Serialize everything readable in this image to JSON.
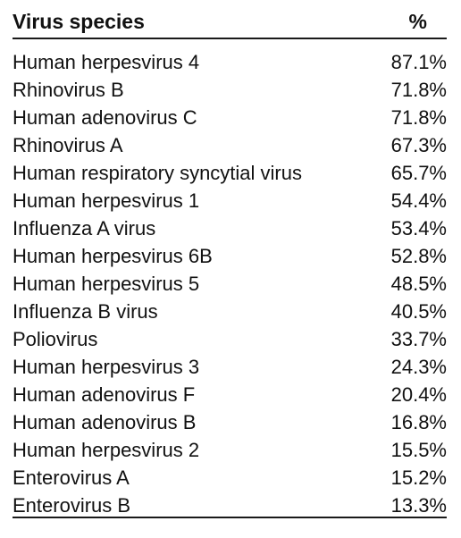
{
  "table": {
    "headers": {
      "name": "Virus species",
      "pct": "%"
    },
    "rows": [
      {
        "name": "Human herpesvirus 4",
        "pct": "87.1%"
      },
      {
        "name": "Rhinovirus B",
        "pct": "71.8%"
      },
      {
        "name": "Human adenovirus C",
        "pct": "71.8%"
      },
      {
        "name": "Rhinovirus A",
        "pct": "67.3%"
      },
      {
        "name": "Human respiratory syncytial virus",
        "pct": "65.7%"
      },
      {
        "name": "Human herpesvirus 1",
        "pct": "54.4%"
      },
      {
        "name": "Influenza A virus",
        "pct": "53.4%"
      },
      {
        "name": "Human herpesvirus 6B",
        "pct": "52.8%"
      },
      {
        "name": "Human herpesvirus 5",
        "pct": "48.5%"
      },
      {
        "name": "Influenza B virus",
        "pct": "40.5%"
      },
      {
        "name": "Poliovirus",
        "pct": "33.7%"
      },
      {
        "name": "Human herpesvirus 3",
        "pct": "24.3%"
      },
      {
        "name": "Human adenovirus F",
        "pct": "20.4%"
      },
      {
        "name": "Human adenovirus B",
        "pct": "16.8%"
      },
      {
        "name": "Human herpesvirus 2",
        "pct": "15.5%"
      },
      {
        "name": "Enterovirus A",
        "pct": "15.2%"
      },
      {
        "name": "Enterovirus B",
        "pct": "13.3%"
      }
    ]
  }
}
